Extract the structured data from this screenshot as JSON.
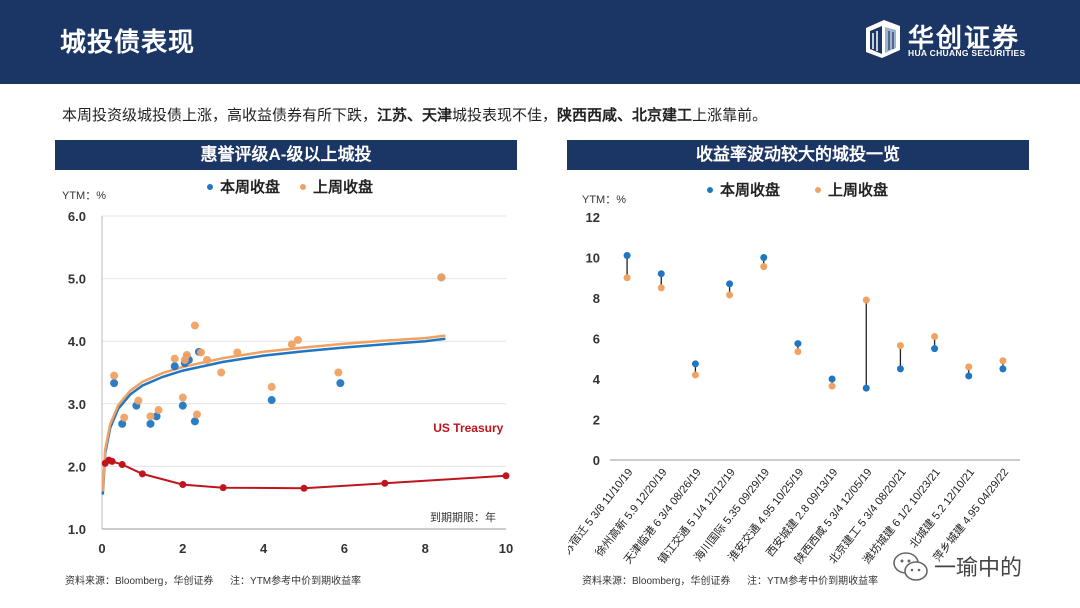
{
  "header": {
    "title": "城投债表现"
  },
  "logo": {
    "name_cn": "华创证券",
    "name_en": "HUA CHUANG SECURITIES"
  },
  "lead": {
    "parts": [
      {
        "text": "本周投资级城投债上涨，高收益债券有所下跌，",
        "bold": false
      },
      {
        "text": "江苏、天津",
        "bold": true
      },
      {
        "text": "城投表现不佳，",
        "bold": false
      },
      {
        "text": "陕西西咸、北京建工",
        "bold": true
      },
      {
        "text": "上涨靠前。",
        "bold": false
      }
    ]
  },
  "colors": {
    "this_week": "#1f77c4",
    "last_week": "#f0a262",
    "treasury": "#c0151c",
    "header": "#1b3564"
  },
  "left_chart": {
    "panel_title": "惠誉评级A-级以上城投",
    "source_text": "资料来源：Bloomberg，华创证券",
    "note_text": "注：YTM参考中价到期收益率"
  },
  "right_chart": {
    "panel_title": "收益率波动较大的城投一览",
    "source_text": "资料来源：Bloomberg，华创证券",
    "note_text": "注：YTM参考中价到期收益率"
  },
  "watermark": {
    "text": "一瑜中的"
  },
  "chart_data": [
    {
      "type": "scatter",
      "title": "惠誉评级A-级以上城投",
      "ylabel": "YTM：%",
      "xlabel": "到期期限：年",
      "xlim": [
        0,
        10
      ],
      "ylim": [
        1.0,
        6.0
      ],
      "xticks": [
        0,
        2,
        4,
        6,
        8,
        10
      ],
      "yticks": [
        "1.0",
        "2.0",
        "3.0",
        "4.0",
        "5.0",
        "6.0"
      ],
      "legend": [
        "本周收盘",
        "上周收盘"
      ],
      "annotation": "US Treasury",
      "series": [
        {
          "name": "本周收盘",
          "points": [
            [
              0.3,
              3.33
            ],
            [
              0.5,
              2.68
            ],
            [
              0.85,
              2.97
            ],
            [
              1.2,
              2.68
            ],
            [
              1.35,
              2.8
            ],
            [
              1.8,
              3.6
            ],
            [
              2.0,
              2.97
            ],
            [
              2.05,
              3.65
            ],
            [
              2.1,
              3.75
            ],
            [
              2.15,
              3.7
            ],
            [
              2.3,
              2.72
            ],
            [
              2.4,
              3.83
            ],
            [
              4.2,
              3.06
            ],
            [
              5.9,
              3.33
            ],
            [
              8.4,
              5.02
            ]
          ]
        },
        {
          "name": "上周收盘",
          "points": [
            [
              0.3,
              3.45
            ],
            [
              0.55,
              2.78
            ],
            [
              0.9,
              3.05
            ],
            [
              1.2,
              2.8
            ],
            [
              1.4,
              2.9
            ],
            [
              1.8,
              3.72
            ],
            [
              2.0,
              3.1
            ],
            [
              2.05,
              3.7
            ],
            [
              2.1,
              3.78
            ],
            [
              2.3,
              4.25
            ],
            [
              2.35,
              2.83
            ],
            [
              2.45,
              3.82
            ],
            [
              2.6,
              3.7
            ],
            [
              2.95,
              3.5
            ],
            [
              3.35,
              3.82
            ],
            [
              4.2,
              3.27
            ],
            [
              4.7,
              3.95
            ],
            [
              4.85,
              4.02
            ],
            [
              5.85,
              3.5
            ],
            [
              8.4,
              5.02
            ]
          ]
        },
        {
          "name": "本周拟合",
          "x": [
            0.02,
            0.08,
            0.2,
            0.4,
            0.7,
            1.0,
            1.5,
            2.0,
            3.0,
            4.0,
            5.0,
            6.0,
            7.0,
            8.0,
            8.5
          ],
          "y": [
            1.55,
            2.21,
            2.61,
            2.92,
            3.15,
            3.29,
            3.43,
            3.53,
            3.67,
            3.77,
            3.84,
            3.9,
            3.95,
            4.0,
            4.04
          ]
        },
        {
          "name": "上周拟合",
          "x": [
            0.02,
            0.08,
            0.2,
            0.4,
            0.7,
            1.0,
            1.5,
            2.0,
            3.0,
            4.0,
            5.0,
            6.0,
            7.0,
            8.0,
            8.5
          ],
          "y": [
            1.6,
            2.27,
            2.67,
            2.98,
            3.21,
            3.35,
            3.49,
            3.59,
            3.73,
            3.83,
            3.9,
            3.96,
            4.01,
            4.05,
            4.09
          ]
        },
        {
          "name": "US Treasury",
          "x": [
            0.08,
            0.17,
            0.25,
            0.5,
            1.0,
            2.0,
            3.0,
            5.0,
            7.0,
            10.0
          ],
          "y": [
            2.05,
            2.1,
            2.08,
            2.03,
            1.88,
            1.71,
            1.66,
            1.65,
            1.73,
            1.85
          ]
        }
      ]
    },
    {
      "type": "scatter",
      "title": "收益率波动较大的城投一览",
      "ylabel": "YTM：%",
      "ylim": [
        0,
        12
      ],
      "yticks": [
        "0",
        "2",
        "4",
        "6",
        "8",
        "10",
        "12"
      ],
      "legend": [
        "本周收盘",
        "上周收盘"
      ],
      "categories": [
        "江苏宿迁 5 3/8 11/10/19",
        "徐州高新 5.9 12/20/19",
        "天津临港 6 3/4 08/26/19",
        "镇江交通 5 1/4 12/12/19",
        "海川国际 5.35 09/29/19",
        "淮安交通 4.95 10/25/19",
        "西安城建 2.8 09/13/19",
        "陕西西咸 5 3/4 12/05/19",
        "北京建工 5 3/4 08/20/21",
        "潍坊城建 6 1/2 10/23/21",
        "北城建 5.2 12/10/21",
        "萍乡城建 4.95 04/29/22"
      ],
      "series": [
        {
          "name": "本周收盘",
          "values": [
            10.1,
            9.2,
            4.75,
            8.7,
            10.0,
            5.75,
            4.0,
            3.55,
            4.5,
            5.5,
            4.15,
            4.5
          ]
        },
        {
          "name": "上周收盘",
          "values": [
            9.0,
            8.5,
            4.2,
            8.15,
            9.55,
            5.35,
            3.65,
            7.9,
            5.65,
            6.1,
            4.6,
            4.9
          ]
        }
      ]
    }
  ]
}
